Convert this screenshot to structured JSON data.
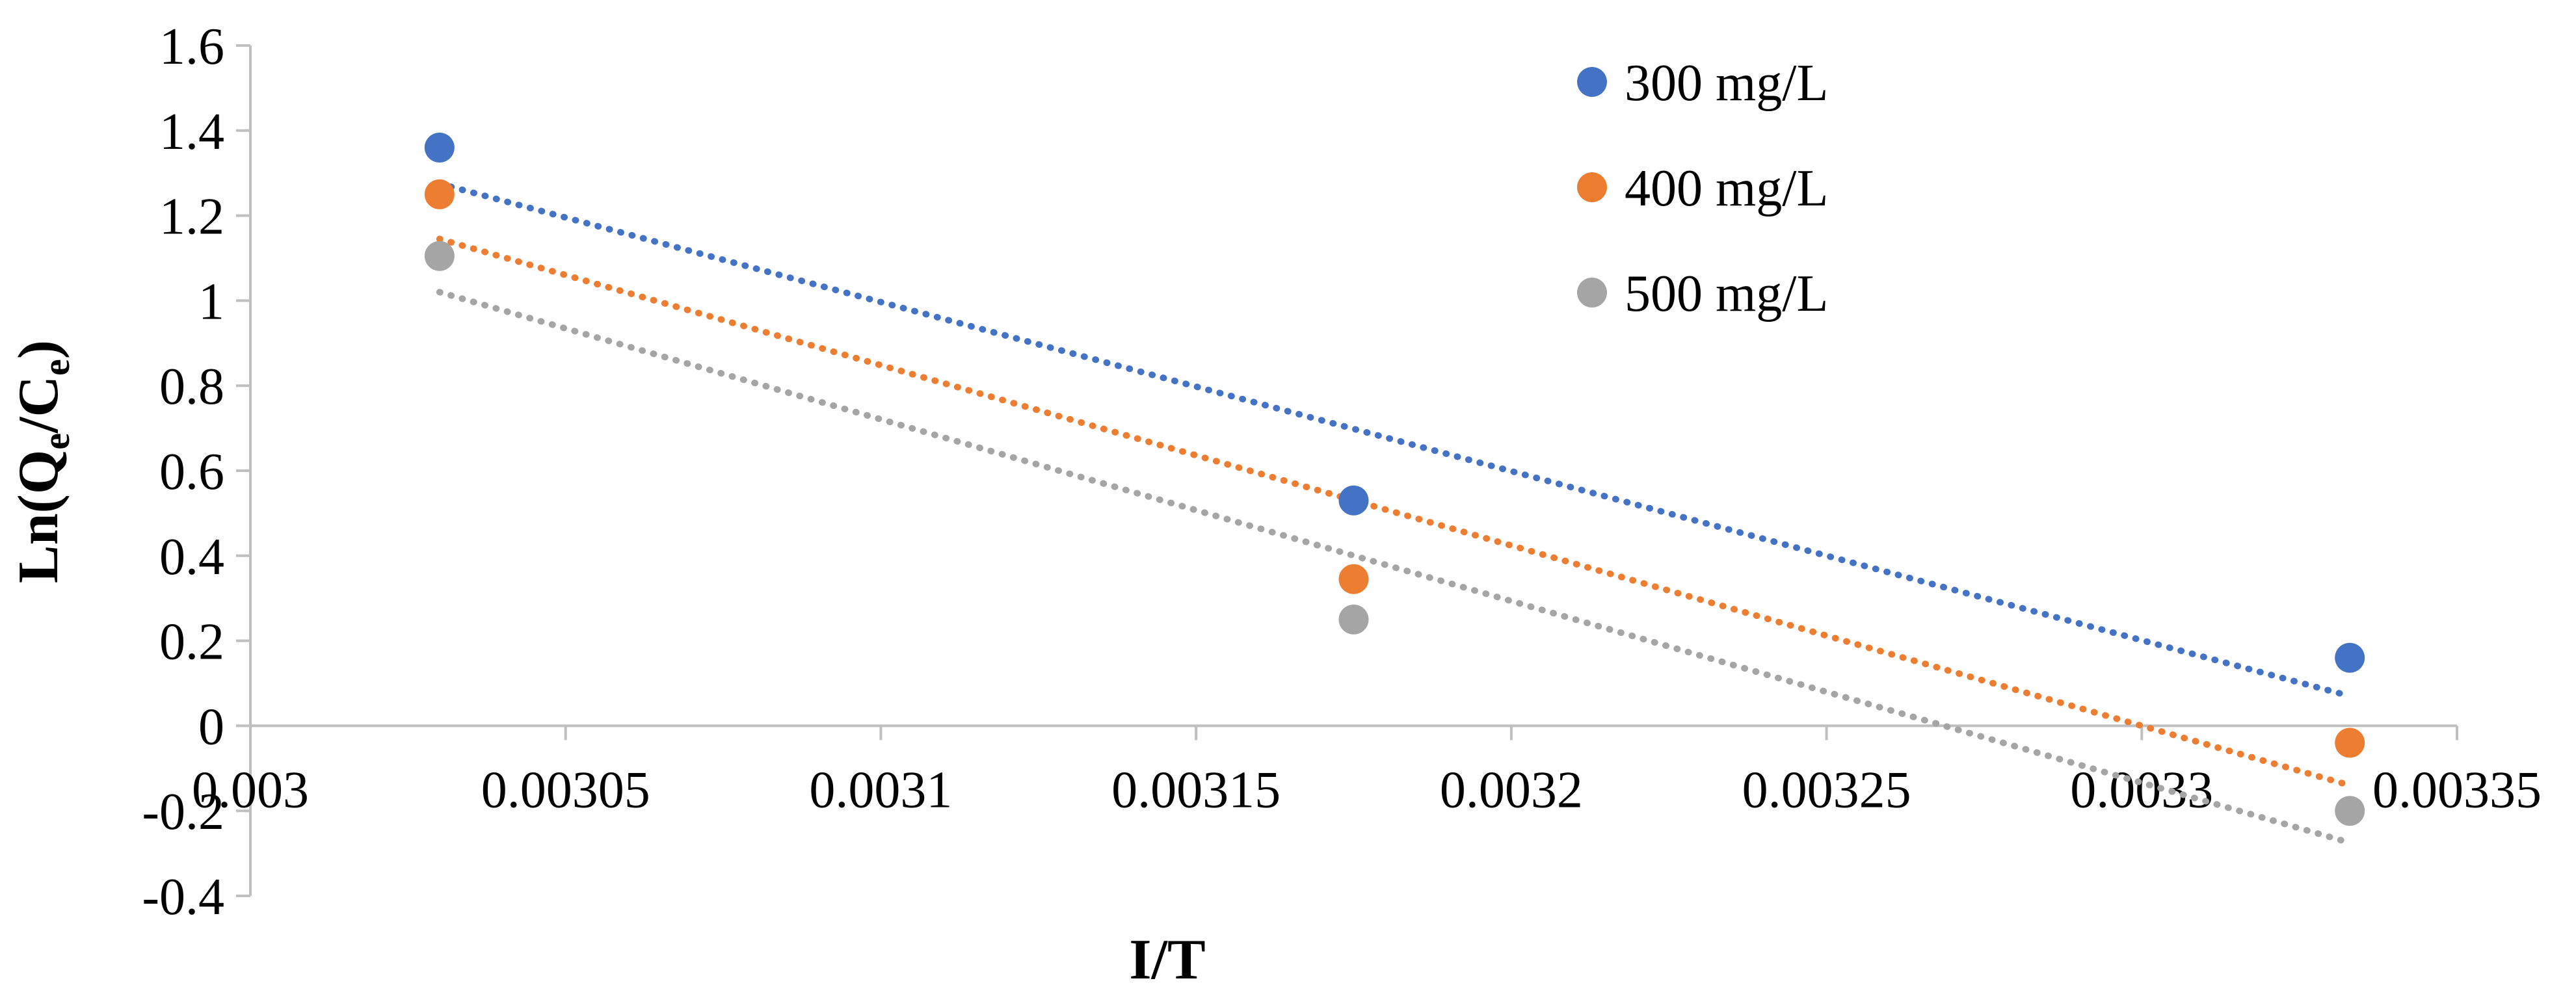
{
  "chart_data": {
    "type": "scatter",
    "title": "",
    "xlabel": "I/T",
    "ylabel": {
      "pre": "Ln(Q",
      "sub1": "e",
      "mid": "/C",
      "sub2": "e",
      "post": ")"
    },
    "xlim": [
      0.003,
      0.00335
    ],
    "ylim": [
      -0.4,
      1.6
    ],
    "x_ticks": [
      "0.003",
      "0.00305",
      "0.0031",
      "0.00315",
      "0.0032",
      "0.00325",
      "0.0033",
      "0.00335"
    ],
    "y_ticks": [
      "-0.4",
      "-0.2",
      "0",
      "0.2",
      "0.4",
      "0.6",
      "0.8",
      "1",
      "1.2",
      "1.4",
      "1.6"
    ],
    "grid": false,
    "legend_position": "top-right",
    "series": [
      {
        "name": "300 mg/L",
        "color": "#4472C4",
        "x": [
          0.00303,
          0.003175,
          0.003333
        ],
        "y": [
          1.36,
          0.53,
          0.16
        ],
        "trendline": {
          "x": [
            0.00303,
            0.003333
          ],
          "y": [
            1.275,
            0.07
          ]
        }
      },
      {
        "name": "400 mg/L",
        "color": "#ED7D31",
        "x": [
          0.00303,
          0.003175,
          0.003333
        ],
        "y": [
          1.25,
          0.345,
          -0.04
        ],
        "trendline": {
          "x": [
            0.00303,
            0.003333
          ],
          "y": [
            1.145,
            -0.14
          ]
        }
      },
      {
        "name": "500 mg/L",
        "color": "#A5A5A5",
        "x": [
          0.00303,
          0.003175,
          0.003333
        ],
        "y": [
          1.105,
          0.25,
          -0.2
        ],
        "trendline": {
          "x": [
            0.00303,
            0.003333
          ],
          "y": [
            1.02,
            -0.275
          ]
        }
      }
    ]
  }
}
